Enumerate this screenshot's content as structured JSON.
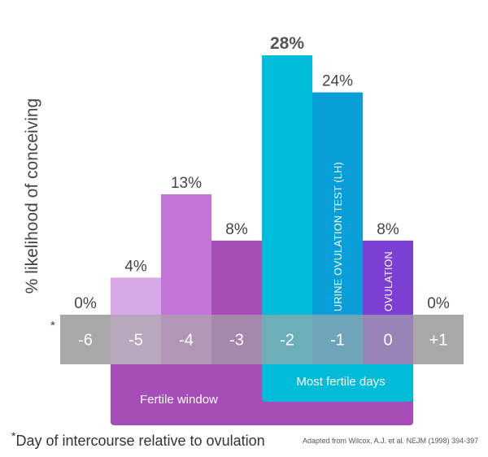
{
  "chart_data": {
    "type": "bar",
    "title": "",
    "ylabel": "% likelihood of conceiving",
    "xlabel": "*Day of intercourse relative to ovulation",
    "xlabel_star": "*",
    "xlabel_text": "Day of intercourse relative to ovulation",
    "categories": [
      "-6",
      "-5",
      "-4",
      "-3",
      "-2",
      "-1",
      "0",
      "+1"
    ],
    "values": [
      0,
      4,
      13,
      8,
      28,
      24,
      8,
      0
    ],
    "value_labels": [
      "0%",
      "4%",
      "13%",
      "8%",
      "28%",
      "24%",
      "8%",
      "0%"
    ],
    "ylim": [
      0,
      28
    ],
    "grid": false,
    "axis_star": "*",
    "bar_colors": [
      "#d7a8e6",
      "#d7a8e6",
      "#c275d6",
      "#a64db8",
      "#00bcd8",
      "#0a9ed9",
      "#7b3fd1",
      "#d7a8e6"
    ],
    "bar_annotations": [
      {
        "category": "-1",
        "text": "URINE OVULATION TEST (LH)"
      },
      {
        "category": "0",
        "text": "OVULATION"
      }
    ],
    "ranges": [
      {
        "label": "Fertile window",
        "from": "-5",
        "to": "0",
        "color": "#a64db8"
      },
      {
        "label": "Most fertile days",
        "from": "-2",
        "to": "0",
        "color": "#00bcd8"
      }
    ]
  },
  "footer": {
    "star": "*",
    "note": "Day of intercourse relative to ovulation",
    "citation": "Adapted from Wilcox, A.J. et al. NEJM (1998) 394-397"
  },
  "colors": {
    "axis_band": "#a8a8a8",
    "axis_text": "#ffffff",
    "label_text": "#444444"
  }
}
